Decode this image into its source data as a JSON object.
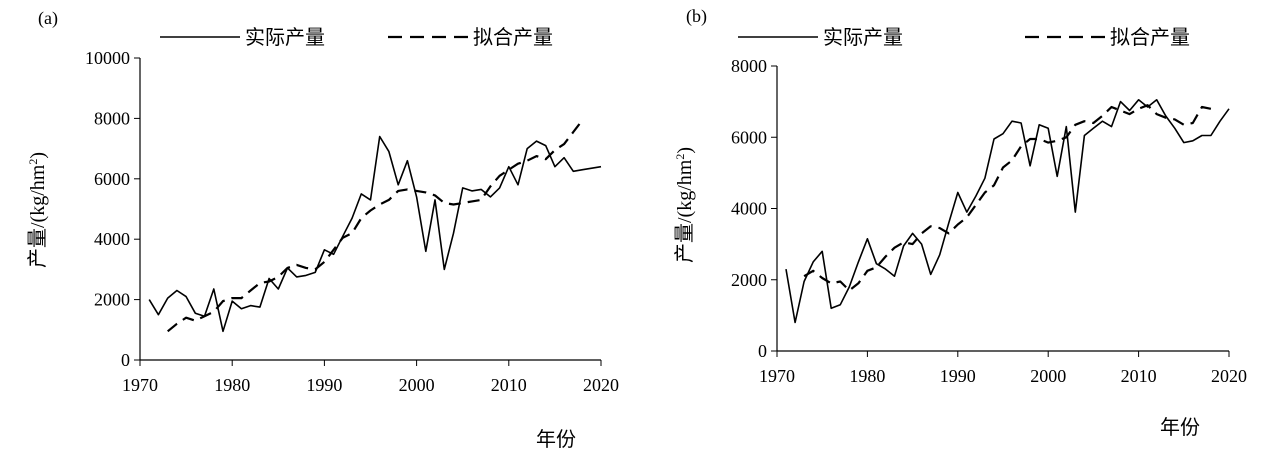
{
  "chart_data": [
    {
      "type": "line",
      "panel_label": "(a)",
      "xlabel": "年份",
      "ylabel": "产量/(kg/hm",
      "xlim": [
        1970,
        2020
      ],
      "ylim": [
        0,
        10000
      ],
      "xticks": [
        1970,
        1980,
        1990,
        2000,
        2010,
        2020
      ],
      "yticks": [
        0,
        2000,
        4000,
        6000,
        8000,
        10000
      ],
      "legend": "top",
      "series": [
        {
          "name": "实际产量",
          "style": "solid",
          "x": [
            1971,
            1972,
            1973,
            1974,
            1975,
            1976,
            1977,
            1978,
            1979,
            1980,
            1981,
            1982,
            1983,
            1984,
            1985,
            1986,
            1987,
            1988,
            1989,
            1990,
            1991,
            1992,
            1993,
            1994,
            1995,
            1996,
            1997,
            1998,
            1999,
            2000,
            2001,
            2002,
            2003,
            2004,
            2005,
            2006,
            2007,
            2008,
            2009,
            2010,
            2011,
            2012,
            2013,
            2014,
            2015,
            2016,
            2017,
            2018,
            2019,
            2020
          ],
          "values": [
            2000,
            1500,
            2050,
            2300,
            2100,
            1550,
            1450,
            2350,
            950,
            1950,
            1700,
            1800,
            1750,
            2700,
            2350,
            3050,
            2750,
            2800,
            2900,
            3650,
            3500,
            4100,
            4700,
            5500,
            5300,
            7400,
            6900,
            5800,
            6600,
            5400,
            3600,
            5300,
            3000,
            4200,
            5700,
            5600,
            5650,
            5400,
            5700,
            6400,
            5800,
            7000,
            7250,
            7100,
            6400,
            6700,
            6250,
            6300,
            6350,
            6400
          ]
        },
        {
          "name": "拟合产量",
          "style": "dashed",
          "x": [
            1973,
            1974,
            1975,
            1976,
            1977,
            1978,
            1979,
            1980,
            1981,
            1982,
            1983,
            1984,
            1985,
            1986,
            1987,
            1988,
            1989,
            1990,
            1991,
            1992,
            1993,
            1994,
            1995,
            1996,
            1997,
            1998,
            1999,
            2000,
            2001,
            2002,
            2003,
            2004,
            2005,
            2006,
            2007,
            2008,
            2009,
            2010,
            2011,
            2012,
            2013,
            2014,
            2015,
            2016,
            2017,
            2018
          ],
          "values": [
            950,
            1200,
            1400,
            1300,
            1450,
            1600,
            1950,
            2050,
            2050,
            2300,
            2550,
            2600,
            2750,
            3050,
            3150,
            3050,
            3000,
            3250,
            3650,
            4050,
            4200,
            4700,
            4950,
            5150,
            5300,
            5600,
            5650,
            5600,
            5550,
            5450,
            5200,
            5150,
            5200,
            5250,
            5300,
            5750,
            6100,
            6300,
            6500,
            6600,
            6750,
            6650,
            6950,
            7150,
            7550,
            7950
          ]
        }
      ]
    },
    {
      "type": "line",
      "panel_label": "(b)",
      "xlabel": "年份",
      "ylabel": "产量/(kg/hm",
      "xlim": [
        1970,
        2020
      ],
      "ylim": [
        0,
        8000
      ],
      "xticks": [
        1970,
        1980,
        1990,
        2000,
        2010,
        2020
      ],
      "yticks": [
        0,
        2000,
        4000,
        6000,
        8000
      ],
      "legend": "top",
      "series": [
        {
          "name": "实际产量",
          "style": "solid",
          "x": [
            1971,
            1972,
            1973,
            1974,
            1975,
            1976,
            1977,
            1978,
            1979,
            1980,
            1981,
            1982,
            1983,
            1984,
            1985,
            1986,
            1987,
            1988,
            1989,
            1990,
            1991,
            1992,
            1993,
            1994,
            1995,
            1996,
            1997,
            1998,
            1999,
            2000,
            2001,
            2002,
            2003,
            2004,
            2005,
            2006,
            2007,
            2008,
            2009,
            2010,
            2011,
            2012,
            2013,
            2014,
            2015,
            2016,
            2017,
            2018,
            2019,
            2020
          ],
          "values": [
            2300,
            800,
            1950,
            2500,
            2800,
            1200,
            1300,
            1800,
            2500,
            3150,
            2450,
            2300,
            2100,
            2950,
            3300,
            3000,
            2150,
            2700,
            3600,
            4450,
            3900,
            4350,
            4850,
            5950,
            6100,
            6450,
            6400,
            5200,
            6350,
            6250,
            4900,
            6300,
            3900,
            6050,
            6250,
            6450,
            6300,
            7000,
            6750,
            7050,
            6850,
            7050,
            6600,
            6250,
            5850,
            5900,
            6050,
            6050,
            6450,
            6800
          ]
        },
        {
          "name": "拟合产量",
          "style": "dashed",
          "x": [
            1973,
            1974,
            1975,
            1976,
            1977,
            1978,
            1979,
            1980,
            1981,
            1982,
            1983,
            1984,
            1985,
            1986,
            1987,
            1988,
            1989,
            1990,
            1991,
            1992,
            1993,
            1994,
            1995,
            1996,
            1997,
            1998,
            1999,
            2000,
            2001,
            2002,
            2003,
            2004,
            2005,
            2006,
            2007,
            2008,
            2009,
            2010,
            2011,
            2012,
            2013,
            2014,
            2015,
            2016,
            2017,
            2018
          ],
          "values": [
            2100,
            2250,
            2050,
            1900,
            1950,
            1700,
            1900,
            2250,
            2350,
            2650,
            2900,
            3050,
            3000,
            3300,
            3500,
            3450,
            3300,
            3550,
            3750,
            4100,
            4450,
            4650,
            5150,
            5350,
            5750,
            5950,
            5950,
            5850,
            5900,
            6000,
            6350,
            6450,
            6400,
            6600,
            6850,
            6750,
            6650,
            6800,
            6900,
            6650,
            6550,
            6500,
            6350,
            6400,
            6850,
            6800
          ]
        }
      ]
    }
  ]
}
